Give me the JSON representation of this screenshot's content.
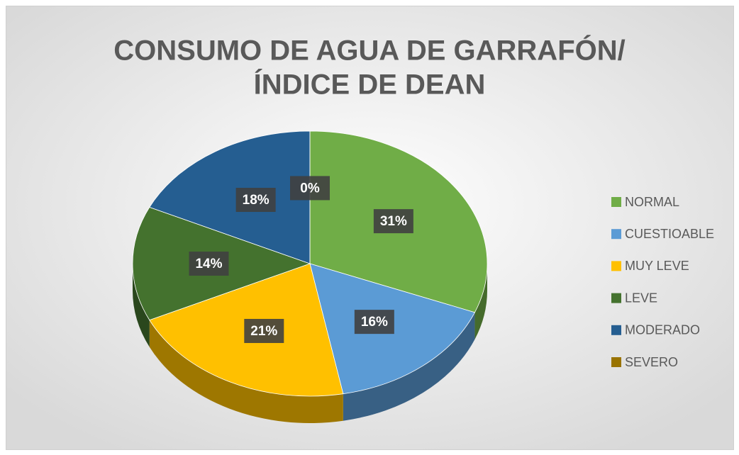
{
  "chart_data": {
    "type": "pie",
    "title": [
      "CONSUMO DE AGUA DE GARRAFÓN/",
      "ÍNDICE DE DEAN"
    ],
    "categories": [
      "NORMAL",
      "CUESTIOABLE",
      "MUY LEVE",
      "LEVE",
      "MODERADO",
      "SEVERO"
    ],
    "values": [
      31,
      16,
      21,
      14,
      18,
      0
    ],
    "value_labels": [
      "31%",
      "16%",
      "21%",
      "14%",
      "18%",
      "0%"
    ],
    "colors": [
      "#70ad47",
      "#5b9bd5",
      "#ffc000",
      "#44722e",
      "#255e91",
      "#997300"
    ],
    "legend": "right"
  }
}
